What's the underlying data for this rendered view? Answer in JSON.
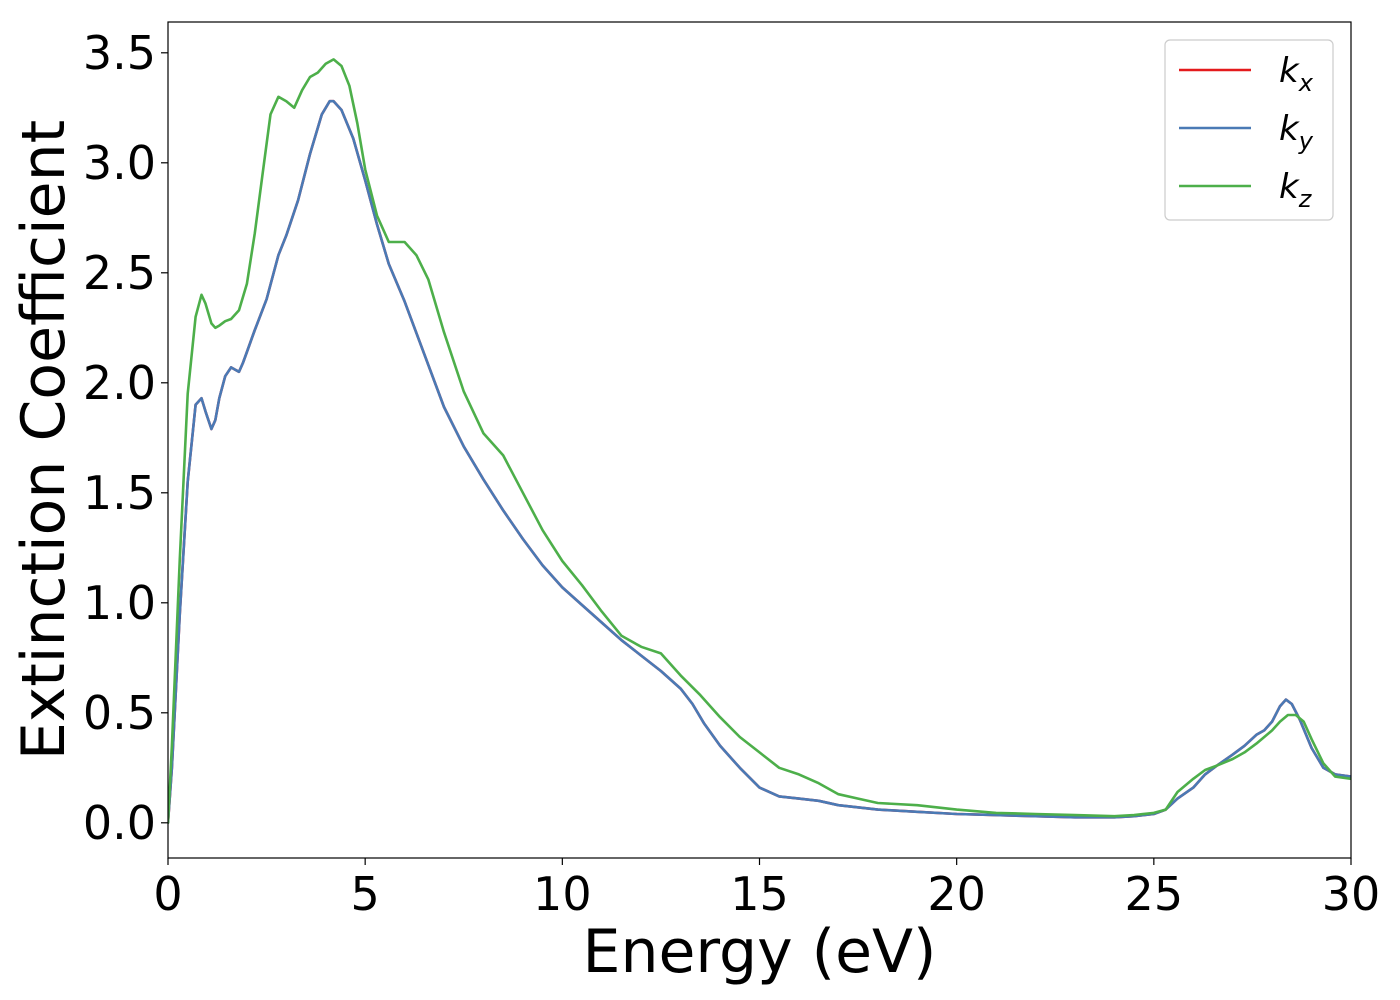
{
  "chart_data": {
    "type": "line",
    "title": "",
    "xlabel": "Energy (eV)",
    "ylabel": "Extinction Coefficient",
    "xlim": [
      0,
      30
    ],
    "ylim": [
      -0.16,
      3.64
    ],
    "xticks": [
      0,
      5,
      10,
      15,
      20,
      25,
      30
    ],
    "yticks": [
      0.0,
      0.5,
      1.0,
      1.5,
      2.0,
      2.5,
      3.0,
      3.5
    ],
    "xtick_labels": [
      "0",
      "5",
      "10",
      "15",
      "20",
      "25",
      "30"
    ],
    "ytick_labels": [
      "0.0",
      "0.5",
      "1.0",
      "1.5",
      "2.0",
      "2.5",
      "3.0",
      "3.5"
    ],
    "grid": false,
    "legend_position": "top-right",
    "series": [
      {
        "name": "k_x",
        "legend_main": "k",
        "legend_sub": "x",
        "color": "#e41a1c",
        "x": [
          0,
          0.1,
          0.3,
          0.5,
          0.7,
          0.85,
          0.95,
          1.1,
          1.2,
          1.3,
          1.45,
          1.6,
          1.7,
          1.8,
          1.9,
          2.0,
          2.2,
          2.5,
          2.8,
          3.0,
          3.3,
          3.6,
          3.9,
          4.1,
          4.2,
          4.4,
          4.7,
          5.0,
          5.3,
          5.6,
          6.0,
          6.5,
          7.0,
          7.5,
          8.0,
          8.5,
          9.0,
          9.5,
          10.0,
          10.5,
          11.0,
          11.5,
          12.0,
          12.5,
          13.0,
          13.3,
          13.6,
          14.0,
          14.5,
          15.0,
          15.5,
          16.0,
          16.5,
          17.0,
          18.0,
          19.0,
          20.0,
          21.0,
          22.0,
          23.0,
          24.0,
          24.5,
          25.0,
          25.3,
          25.6,
          26.0,
          26.3,
          26.6,
          27.0,
          27.3,
          27.6,
          27.8,
          28.0,
          28.2,
          28.35,
          28.5,
          28.7,
          29.0,
          29.3,
          29.6,
          30.0
        ],
        "values": [
          0.0,
          0.25,
          0.95,
          1.55,
          1.9,
          1.93,
          1.87,
          1.79,
          1.83,
          1.93,
          2.03,
          2.07,
          2.06,
          2.05,
          2.09,
          2.14,
          2.24,
          2.38,
          2.58,
          2.67,
          2.83,
          3.04,
          3.22,
          3.28,
          3.28,
          3.24,
          3.11,
          2.92,
          2.72,
          2.54,
          2.37,
          2.13,
          1.89,
          1.71,
          1.56,
          1.42,
          1.29,
          1.17,
          1.07,
          0.99,
          0.91,
          0.83,
          0.76,
          0.69,
          0.61,
          0.54,
          0.45,
          0.35,
          0.25,
          0.16,
          0.12,
          0.11,
          0.1,
          0.08,
          0.06,
          0.05,
          0.04,
          0.035,
          0.03,
          0.025,
          0.025,
          0.03,
          0.04,
          0.06,
          0.11,
          0.16,
          0.22,
          0.26,
          0.31,
          0.35,
          0.4,
          0.42,
          0.46,
          0.53,
          0.56,
          0.54,
          0.47,
          0.34,
          0.25,
          0.22,
          0.21
        ]
      },
      {
        "name": "k_y",
        "legend_main": "k",
        "legend_sub": "y",
        "color": "#4a7ab5",
        "x": [
          0,
          0.1,
          0.3,
          0.5,
          0.7,
          0.85,
          0.95,
          1.1,
          1.2,
          1.3,
          1.45,
          1.6,
          1.7,
          1.8,
          1.9,
          2.0,
          2.2,
          2.5,
          2.8,
          3.0,
          3.3,
          3.6,
          3.9,
          4.1,
          4.2,
          4.4,
          4.7,
          5.0,
          5.3,
          5.6,
          6.0,
          6.5,
          7.0,
          7.5,
          8.0,
          8.5,
          9.0,
          9.5,
          10.0,
          10.5,
          11.0,
          11.5,
          12.0,
          12.5,
          13.0,
          13.3,
          13.6,
          14.0,
          14.5,
          15.0,
          15.5,
          16.0,
          16.5,
          17.0,
          18.0,
          19.0,
          20.0,
          21.0,
          22.0,
          23.0,
          24.0,
          24.5,
          25.0,
          25.3,
          25.6,
          26.0,
          26.3,
          26.6,
          27.0,
          27.3,
          27.6,
          27.8,
          28.0,
          28.2,
          28.35,
          28.5,
          28.7,
          29.0,
          29.3,
          29.6,
          30.0
        ],
        "values": [
          0.0,
          0.25,
          0.95,
          1.55,
          1.9,
          1.93,
          1.87,
          1.79,
          1.83,
          1.93,
          2.03,
          2.07,
          2.06,
          2.05,
          2.09,
          2.14,
          2.24,
          2.38,
          2.58,
          2.67,
          2.83,
          3.04,
          3.22,
          3.28,
          3.28,
          3.24,
          3.11,
          2.92,
          2.72,
          2.54,
          2.37,
          2.13,
          1.89,
          1.71,
          1.56,
          1.42,
          1.29,
          1.17,
          1.07,
          0.99,
          0.91,
          0.83,
          0.76,
          0.69,
          0.61,
          0.54,
          0.45,
          0.35,
          0.25,
          0.16,
          0.12,
          0.11,
          0.1,
          0.08,
          0.06,
          0.05,
          0.04,
          0.035,
          0.03,
          0.025,
          0.025,
          0.03,
          0.04,
          0.06,
          0.11,
          0.16,
          0.22,
          0.26,
          0.31,
          0.35,
          0.4,
          0.42,
          0.46,
          0.53,
          0.56,
          0.54,
          0.47,
          0.34,
          0.25,
          0.22,
          0.21
        ]
      },
      {
        "name": "k_z",
        "legend_main": "k",
        "legend_sub": "z",
        "color": "#4daf4a",
        "x": [
          0,
          0.1,
          0.3,
          0.5,
          0.7,
          0.85,
          0.95,
          1.1,
          1.2,
          1.3,
          1.45,
          1.6,
          1.8,
          2.0,
          2.2,
          2.4,
          2.6,
          2.8,
          3.0,
          3.2,
          3.4,
          3.6,
          3.8,
          4.0,
          4.2,
          4.4,
          4.6,
          4.8,
          5.0,
          5.3,
          5.6,
          6.0,
          6.3,
          6.6,
          7.0,
          7.5,
          8.0,
          8.5,
          9.0,
          9.5,
          10.0,
          10.5,
          11.0,
          11.5,
          12.0,
          12.5,
          13.0,
          13.5,
          14.0,
          14.5,
          15.0,
          15.5,
          16.0,
          16.5,
          17.0,
          17.5,
          18.0,
          19.0,
          20.0,
          21.0,
          22.0,
          23.0,
          24.0,
          24.5,
          25.0,
          25.3,
          25.6,
          26.0,
          26.3,
          26.6,
          27.0,
          27.3,
          27.6,
          28.0,
          28.2,
          28.4,
          28.6,
          28.8,
          29.0,
          29.3,
          29.6,
          30.0
        ],
        "values": [
          0.0,
          0.35,
          1.2,
          1.95,
          2.3,
          2.4,
          2.36,
          2.27,
          2.25,
          2.26,
          2.28,
          2.29,
          2.33,
          2.45,
          2.68,
          2.95,
          3.22,
          3.3,
          3.28,
          3.25,
          3.33,
          3.39,
          3.41,
          3.45,
          3.47,
          3.44,
          3.35,
          3.18,
          2.97,
          2.76,
          2.64,
          2.64,
          2.58,
          2.47,
          2.23,
          1.96,
          1.77,
          1.67,
          1.5,
          1.33,
          1.19,
          1.08,
          0.96,
          0.85,
          0.8,
          0.77,
          0.67,
          0.58,
          0.48,
          0.39,
          0.32,
          0.25,
          0.22,
          0.18,
          0.13,
          0.11,
          0.09,
          0.08,
          0.06,
          0.045,
          0.04,
          0.035,
          0.03,
          0.035,
          0.045,
          0.06,
          0.14,
          0.2,
          0.24,
          0.26,
          0.29,
          0.32,
          0.36,
          0.42,
          0.46,
          0.49,
          0.49,
          0.46,
          0.38,
          0.27,
          0.21,
          0.2
        ]
      }
    ]
  }
}
